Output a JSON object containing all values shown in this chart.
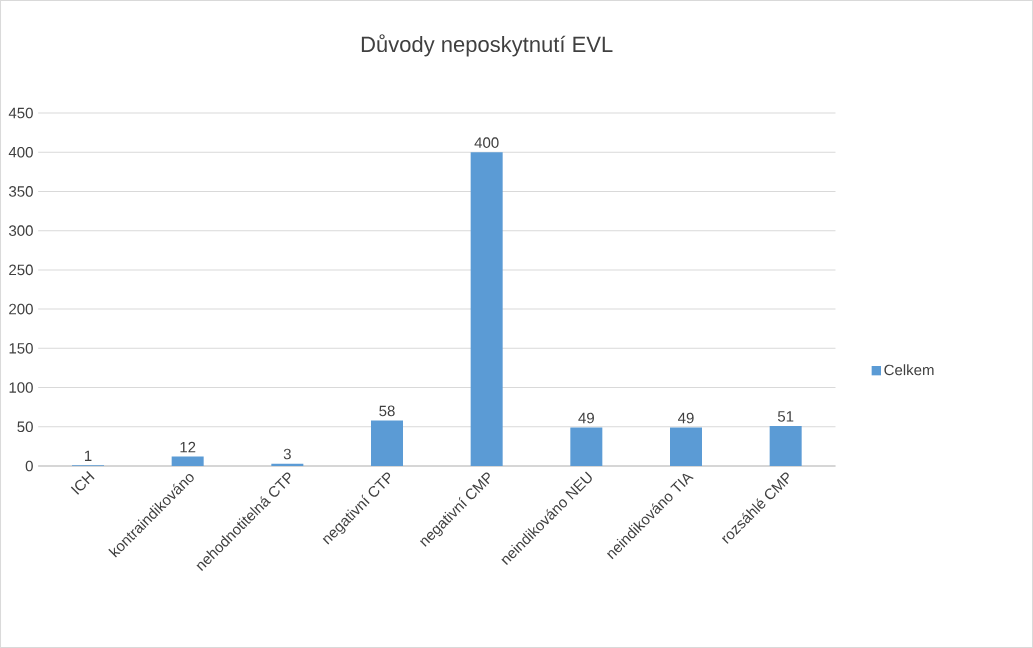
{
  "chart_data": {
    "type": "bar",
    "title": "Důvody neposkytnutí EVL",
    "categories": [
      "ICH",
      "kontraindikováno",
      "nehodnotitelná CTP",
      "negativní CTP",
      "negativní CMP",
      "neindikováno NEU",
      "neindikováno TIA",
      "rozsáhlé CMP"
    ],
    "series": [
      {
        "name": "Celkem",
        "color": "#5b9bd5",
        "values": [
          1,
          12,
          3,
          58,
          400,
          49,
          49,
          51
        ]
      }
    ],
    "ylim": [
      0,
      450
    ],
    "yticks": [
      0,
      50,
      100,
      150,
      200,
      250,
      300,
      350,
      400,
      450
    ],
    "grid": "y",
    "legend": "right",
    "data_labels": true
  }
}
